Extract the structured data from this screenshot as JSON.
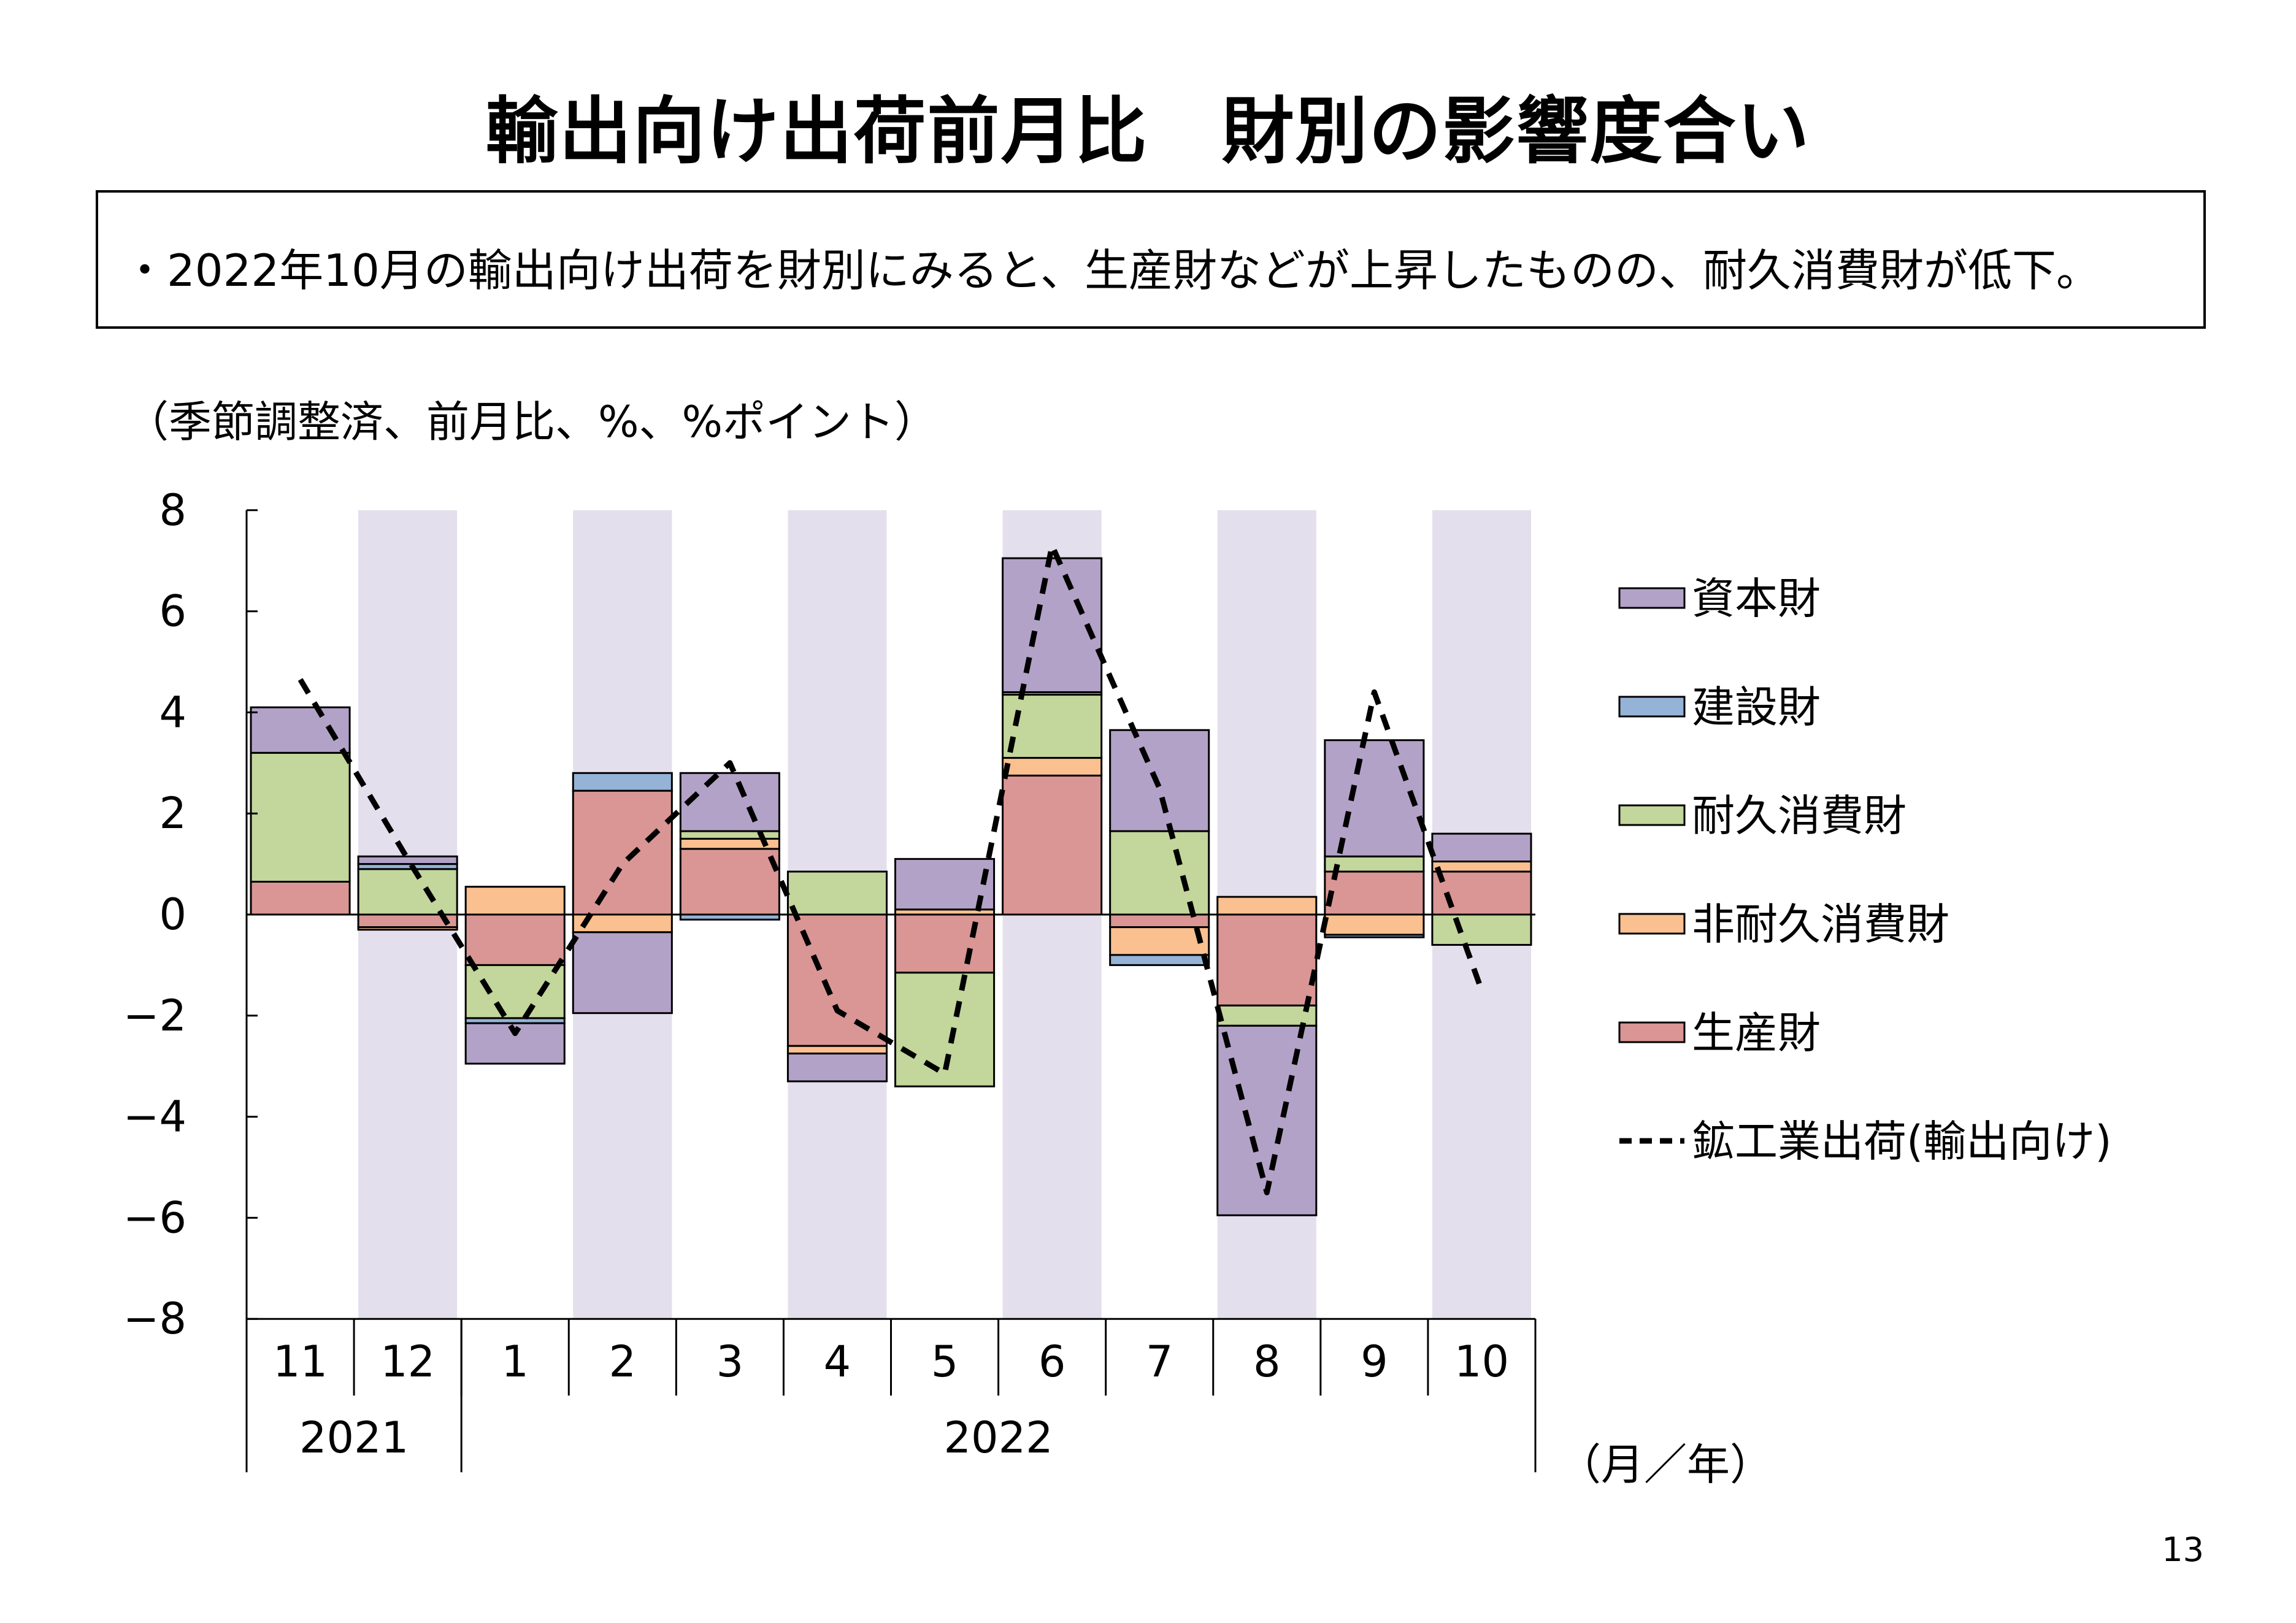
{
  "title": "輸出向け出荷前月比　財別の影響度合い",
  "summary": "・2022年10月の輸出向け出荷を財別にみると、生産財などが上昇したものの、耐久消費財が低下。",
  "page_number": "13",
  "colors": {
    "capital": "#b3a2c7",
    "construction": "#95b3d7",
    "durable": "#c3d69b",
    "nondurable": "#fac090",
    "production": "#d99694",
    "shading": "#e4dfec",
    "line": "#000000"
  },
  "chart_data": {
    "type": "bar",
    "stacked": true,
    "unit_note": "（季節調整済、前月比、%、%ポイント）",
    "x_unit": "（月／年）",
    "categories": [
      "11",
      "12",
      "1",
      "2",
      "3",
      "4",
      "5",
      "6",
      "7",
      "8",
      "9",
      "10"
    ],
    "year_groups": [
      {
        "label": "2021",
        "count": 2
      },
      {
        "label": "2022",
        "count": 10
      }
    ],
    "ylim": [
      -8,
      8
    ],
    "yticks": [
      8,
      6,
      4,
      2,
      0,
      -2,
      -4,
      -6,
      -8
    ],
    "ytick_labels": [
      "8",
      "6",
      "4",
      "2",
      "0",
      "−2",
      "−4",
      "−6",
      "−8"
    ],
    "grid": false,
    "legend_position": "right",
    "shaded_categories": [
      "12",
      "2",
      "4",
      "6",
      "8",
      "10"
    ],
    "series": [
      {
        "name": "生産財",
        "key": "production",
        "values": [
          0.65,
          -0.25,
          -1.0,
          2.45,
          1.3,
          -2.6,
          -1.15,
          2.75,
          -0.25,
          -1.8,
          0.85,
          0.85
        ]
      },
      {
        "name": "非耐久消費財",
        "key": "nondurable",
        "values": [
          0.0,
          -0.05,
          0.55,
          -0.35,
          0.2,
          -0.15,
          0.1,
          0.35,
          -0.55,
          0.35,
          -0.4,
          0.2
        ]
      },
      {
        "name": "耐久消費財",
        "key": "durable",
        "values": [
          2.55,
          0.9,
          -1.05,
          0.0,
          0.15,
          0.85,
          -2.25,
          1.25,
          1.65,
          -0.4,
          0.3,
          -0.6
        ]
      },
      {
        "name": "建設財",
        "key": "construction",
        "values": [
          0.0,
          0.1,
          -0.1,
          0.35,
          -0.1,
          0.0,
          0.0,
          0.05,
          -0.2,
          0.0,
          -0.05,
          0.0
        ]
      },
      {
        "name": "資本財",
        "key": "capital",
        "values": [
          0.9,
          0.15,
          -0.8,
          -1.6,
          1.15,
          -0.55,
          1.0,
          2.65,
          2.0,
          -3.75,
          2.3,
          0.55
        ]
      }
    ],
    "line_series": {
      "name": "鉱工業出荷（輸出向け）",
      "values": [
        4.65,
        1.1,
        -2.35,
        1.0,
        3.0,
        -1.9,
        -3.15,
        7.3,
        2.5,
        -5.5,
        4.4,
        -1.5
      ]
    },
    "legend_order": [
      "capital",
      "construction",
      "durable",
      "nondurable",
      "production",
      "line"
    ],
    "legend_labels": {
      "capital": "資本財",
      "construction": "建設財",
      "durable": "耐久消費財",
      "nondurable": "非耐久消費財",
      "production": "生産財",
      "line": "鉱工業出荷(輸出向け)"
    }
  }
}
